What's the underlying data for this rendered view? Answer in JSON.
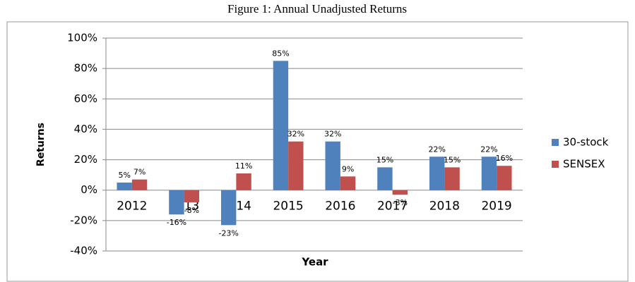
{
  "chart_data": {
    "type": "bar",
    "title": "Figure 1: Annual Unadjusted Returns",
    "x_label": "Year",
    "y_label": "Returns",
    "categories": [
      "2012",
      "2013",
      "2014",
      "2015",
      "2016",
      "2017",
      "2018",
      "2019"
    ],
    "series": [
      {
        "name": "30-stock",
        "color": "#4f81bd",
        "values": [
          5,
          -16,
          -23,
          85,
          32,
          15,
          22,
          22
        ],
        "value_labels": [
          "5%",
          "-16%",
          "-23%",
          "85%",
          "32%",
          "15%",
          "22%",
          "22%"
        ]
      },
      {
        "name": "SENSEX",
        "color": "#c0504d",
        "values": [
          7,
          -8,
          11,
          32,
          9,
          -3,
          15,
          16
        ],
        "value_labels": [
          "7%",
          "-8%",
          "11%",
          "32%",
          "9%",
          "-3%",
          "15%",
          "16%"
        ]
      }
    ],
    "ylim": [
      -40,
      100
    ],
    "yticks": [
      {
        "value": -40,
        "label": "-40%"
      },
      {
        "value": -20,
        "label": "-20%"
      },
      {
        "value": 0,
        "label": "0%"
      },
      {
        "value": 20,
        "label": "20%"
      },
      {
        "value": 40,
        "label": "40%"
      },
      {
        "value": 60,
        "label": "60%"
      },
      {
        "value": 80,
        "label": "80%"
      },
      {
        "value": 100,
        "label": "100%"
      }
    ],
    "grid": true,
    "legend": "right"
  }
}
